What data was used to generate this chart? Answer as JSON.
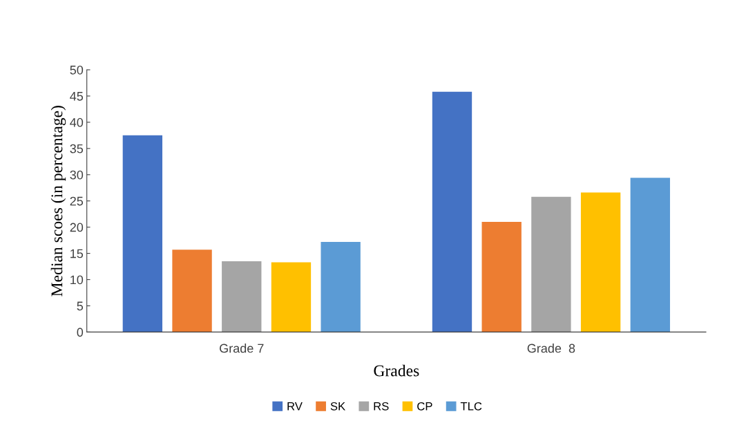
{
  "chart_data": {
    "type": "bar",
    "xlabel": "Grades",
    "ylabel": "Median scoes (in percentage)",
    "categories": [
      "Grade 7",
      "Grade  8"
    ],
    "series": [
      {
        "name": "RV",
        "color": "#4472c4",
        "values": [
          37.5,
          45.8
        ]
      },
      {
        "name": "SK",
        "color": "#ed7d31",
        "values": [
          15.7,
          21.0
        ]
      },
      {
        "name": "RS",
        "color": "#a5a5a5",
        "values": [
          13.5,
          25.8
        ]
      },
      {
        "name": "CP",
        "color": "#ffc000",
        "values": [
          13.3,
          26.6
        ]
      },
      {
        "name": "TLC",
        "color": "#5b9bd5",
        "values": [
          17.2,
          29.4
        ]
      }
    ],
    "ylim": [
      0,
      50
    ],
    "yticks": [
      0,
      5,
      10,
      15,
      20,
      25,
      30,
      35,
      40,
      45,
      50
    ],
    "grid": false,
    "legend": "bottom"
  }
}
